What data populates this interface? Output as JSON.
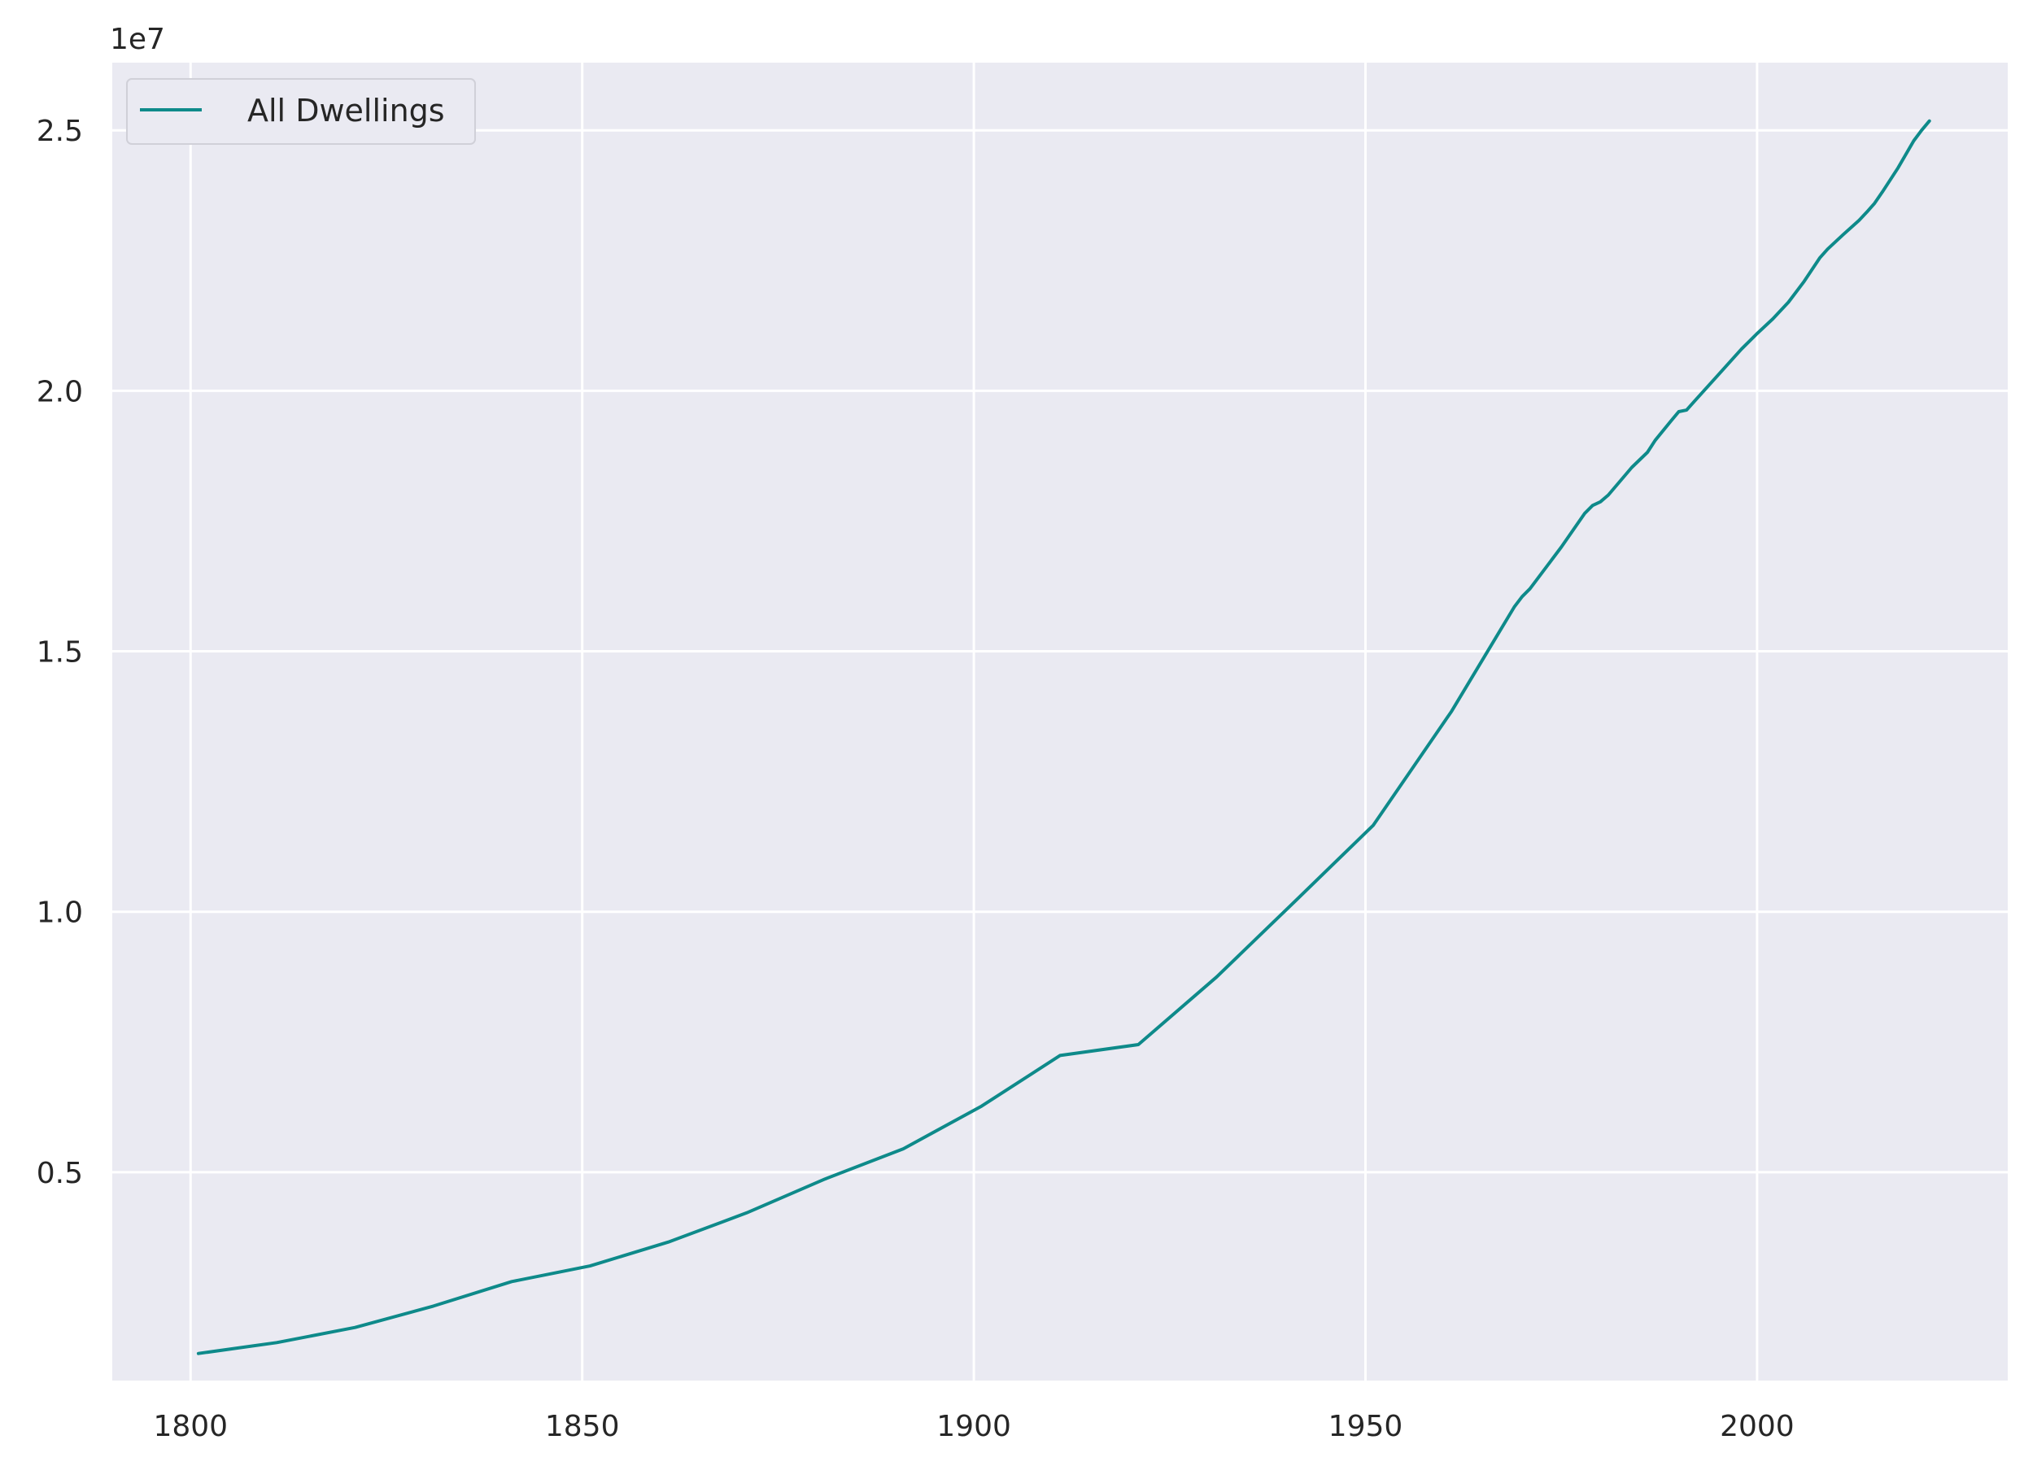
{
  "chart_data": {
    "type": "line",
    "title": "",
    "xlabel": "",
    "ylabel": "",
    "y_offset_label": "1e7",
    "xlim": [
      1790,
      2032
    ],
    "ylim": [
      0.1,
      2.63
    ],
    "x_ticks": [
      1800,
      1850,
      1900,
      1950,
      2000
    ],
    "x_tick_labels": [
      "1800",
      "1850",
      "1900",
      "1950",
      "2000"
    ],
    "y_ticks": [
      0.5,
      1.0,
      1.5,
      2.0,
      2.5
    ],
    "y_tick_labels": [
      "0.5",
      "1.0",
      "1.5",
      "2.0",
      "2.5"
    ],
    "grid": true,
    "legend_position": "upper-left",
    "colors": {
      "background": "#eaeaf2",
      "grid": "#ffffff",
      "line": "#0e8a8a"
    },
    "series": [
      {
        "name": "All Dwellings",
        "x": [
          1801,
          1811,
          1821,
          1831,
          1841,
          1851,
          1861,
          1871,
          1881,
          1891,
          1901,
          1911,
          1921,
          1931,
          1941,
          1951,
          1961,
          1966,
          1969,
          1970,
          1971,
          1972,
          1975,
          1978,
          1979,
          1980,
          1981,
          1984,
          1986,
          1987,
          1989,
          1990,
          1991,
          1992,
          1995,
          1998,
          2000,
          2002,
          2004,
          2006,
          2008,
          2009,
          2011,
          2013,
          2014,
          2015,
          2016,
          2018,
          2020,
          2021,
          2022
        ],
        "values": [
          0.152,
          0.173,
          0.202,
          0.243,
          0.29,
          0.32,
          0.366,
          0.422,
          0.487,
          0.545,
          0.627,
          0.724,
          0.745,
          0.875,
          1.02,
          1.166,
          1.385,
          1.51,
          1.585,
          1.605,
          1.62,
          1.64,
          1.7,
          1.765,
          1.78,
          1.787,
          1.8,
          1.853,
          1.882,
          1.905,
          1.942,
          1.96,
          1.963,
          1.98,
          2.03,
          2.08,
          2.11,
          2.138,
          2.17,
          2.21,
          2.255,
          2.272,
          2.3,
          2.327,
          2.343,
          2.36,
          2.382,
          2.428,
          2.48,
          2.5,
          2.518
        ]
      }
    ]
  }
}
